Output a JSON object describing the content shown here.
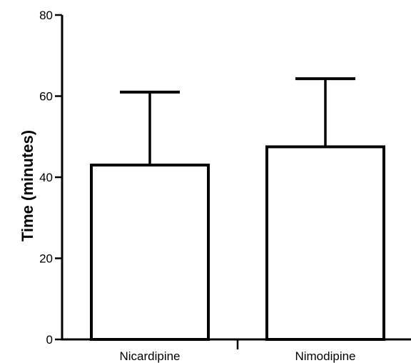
{
  "chart_data": {
    "type": "bar",
    "categories": [
      "Nicardipine",
      "Nimodipine"
    ],
    "values": [
      43,
      47.5
    ],
    "error_upper": [
      61,
      64.3
    ],
    "title": "",
    "xlabel": "",
    "ylabel": "Time (minutes)",
    "ylim": [
      0,
      80
    ],
    "yticks": [
      "0",
      "20",
      "40",
      "60",
      "80"
    ],
    "grid": false,
    "legend": "none",
    "colors": {
      "bar_fill": "#ffffff",
      "bar_stroke": "#000000",
      "axis": "#000000"
    }
  }
}
